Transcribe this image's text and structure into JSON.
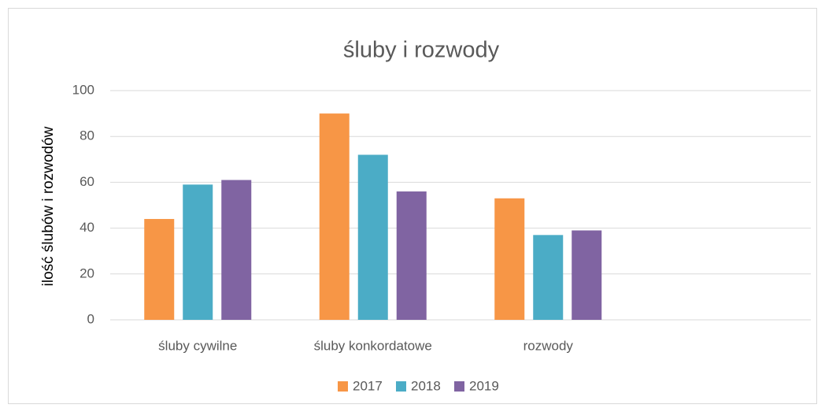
{
  "chart_data": {
    "type": "bar",
    "title": "śluby i rozwody",
    "y_label": "ilość ślubów i rozwodów",
    "categories": [
      "śluby cywilne",
      "śluby konkordatowe",
      "rozwody",
      null
    ],
    "series": [
      {
        "name": "2017",
        "color": "#f79646",
        "values": [
          44,
          90,
          53,
          null
        ]
      },
      {
        "name": "2018",
        "color": "#4bacc6",
        "values": [
          59,
          72,
          37,
          null
        ]
      },
      {
        "name": "2019",
        "color": "#8064a2",
        "values": [
          61,
          56,
          39,
          null
        ]
      }
    ],
    "ylim": [
      0,
      100
    ],
    "yticks": [
      0,
      20,
      40,
      60,
      80,
      100
    ],
    "grid": true,
    "legend": "bottom"
  }
}
